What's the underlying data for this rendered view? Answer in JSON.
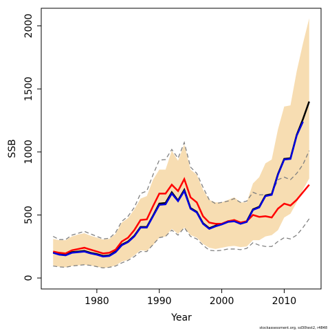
{
  "chart_data": {
    "type": "line",
    "x_label": "Year",
    "y_label": "SSB",
    "footnote": "stockassessment.org, sd30test2, r4848",
    "x": [
      1973,
      1974,
      1975,
      1976,
      1977,
      1978,
      1979,
      1980,
      1981,
      1982,
      1983,
      1984,
      1985,
      1986,
      1987,
      1988,
      1989,
      1990,
      1991,
      1992,
      1993,
      1994,
      1995,
      1996,
      1997,
      1998,
      1999,
      2000,
      2001,
      2002,
      2003,
      2004,
      2005,
      2006,
      2007,
      2008,
      2009,
      2010,
      2011,
      2012,
      2013,
      2014
    ],
    "xlim": [
      1971.1,
      2015.9
    ],
    "xticks": [
      1980,
      1990,
      2000,
      2010
    ],
    "ylim": [
      -87,
      2140
    ],
    "yticks": [
      0,
      500,
      1000,
      1500,
      2000
    ],
    "band": {
      "color": "#f7ddb2",
      "upper": [
        310,
        300,
        300,
        330,
        345,
        355,
        335,
        320,
        305,
        310,
        350,
        440,
        475,
        545,
        630,
        650,
        780,
        860,
        860,
        1010,
        930,
        1060,
        860,
        820,
        700,
        620,
        600,
        600,
        620,
        640,
        600,
        600,
        750,
        800,
        910,
        940,
        1180,
        1360,
        1370,
        1640,
        1860,
        2060
      ],
      "lower": [
        100,
        90,
        85,
        95,
        100,
        105,
        100,
        90,
        80,
        85,
        100,
        130,
        145,
        180,
        220,
        215,
        260,
        320,
        330,
        390,
        350,
        400,
        340,
        320,
        270,
        240,
        230,
        240,
        250,
        255,
        245,
        250,
        300,
        300,
        330,
        340,
        380,
        480,
        510,
        600,
        700,
        790
      ]
    },
    "series": [
      {
        "color": "#808080",
        "dash": true,
        "values": [
          330,
          305,
          305,
          340,
          355,
          370,
          350,
          330,
          310,
          315,
          360,
          450,
          490,
          560,
          670,
          690,
          820,
          935,
          940,
          1020,
          950,
          1075,
          880,
          830,
          720,
          620,
          590,
          600,
          610,
          630,
          600,
          610,
          680,
          660,
          660,
          670,
          780,
          800,
          780,
          830,
          900,
          1010
        ]
      },
      {
        "color": "#808080",
        "dash": true,
        "values": [
          95,
          88,
          85,
          95,
          100,
          105,
          100,
          90,
          80,
          85,
          95,
          120,
          140,
          170,
          210,
          210,
          265,
          320,
          330,
          380,
          340,
          400,
          330,
          310,
          260,
          220,
          215,
          220,
          230,
          230,
          225,
          235,
          280,
          260,
          250,
          250,
          290,
          320,
          310,
          340,
          400,
          470
        ]
      },
      {
        "color": "#000000",
        "dash": false,
        "values": [
          205,
          190,
          185,
          205,
          210,
          215,
          200,
          190,
          175,
          180,
          210,
          265,
          290,
          335,
          405,
          405,
          495,
          590,
          595,
          680,
          615,
          700,
          555,
          525,
          435,
          395,
          415,
          430,
          450,
          455,
          435,
          450,
          545,
          565,
          655,
          665,
          825,
          945,
          950,
          1135,
          1260,
          1400
        ]
      },
      {
        "color": "#ff0000",
        "dash": false,
        "values": [
          210,
          200,
          195,
          220,
          230,
          240,
          225,
          210,
          195,
          200,
          225,
          290,
          320,
          380,
          460,
          465,
          570,
          670,
          670,
          740,
          690,
          785,
          640,
          600,
          490,
          440,
          430,
          430,
          450,
          460,
          440,
          450,
          500,
          485,
          490,
          480,
          550,
          590,
          575,
          620,
          680,
          740
        ]
      },
      {
        "color": "#0000dd",
        "dash": false,
        "values": [
          200,
          185,
          180,
          200,
          205,
          210,
          195,
          185,
          170,
          175,
          205,
          260,
          285,
          330,
          400,
          400,
          490,
          580,
          585,
          670,
          610,
          690,
          550,
          520,
          430,
          390,
          410,
          425,
          445,
          450,
          430,
          445,
          540,
          560,
          650,
          660,
          820,
          940,
          945,
          1130,
          1240,
          null
        ]
      }
    ]
  }
}
